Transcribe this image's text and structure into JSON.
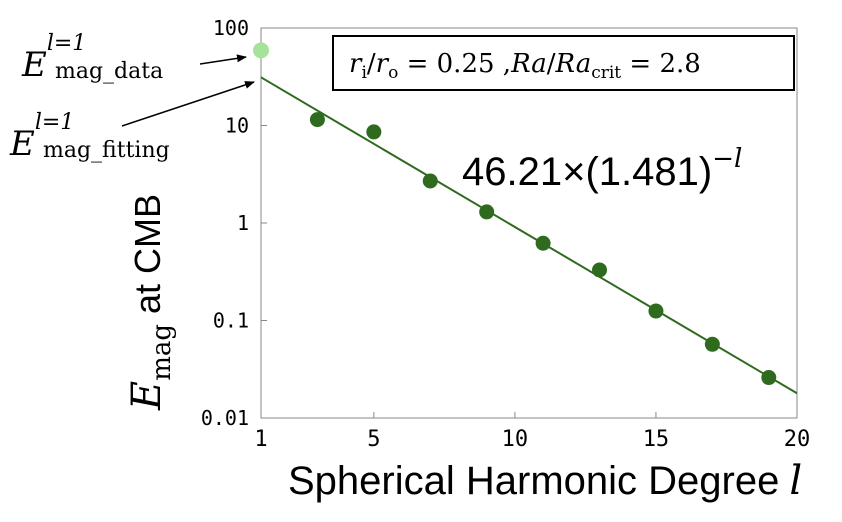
{
  "chart_data": {
    "type": "scatter",
    "xlabel": "Spherical Harmonic Degree",
    "xlabel_var": "l",
    "ylabel_sym": "E",
    "ylabel_sub": "mag",
    "ylabel_rest": "at CMB",
    "xlim": [
      1,
      20
    ],
    "ylim": [
      0.01,
      100
    ],
    "yscale": "log",
    "x_ticks": [
      1,
      5,
      10,
      15,
      20
    ],
    "y_ticks": [
      {
        "value": 100,
        "label": "100"
      },
      {
        "value": 10,
        "label": "10"
      },
      {
        "value": 1,
        "label": "1"
      },
      {
        "value": 0.1,
        "label": "0.1"
      },
      {
        "value": 0.01,
        "label": "0.01"
      }
    ],
    "grid": false,
    "data_point": {
      "x": 1,
      "y": 59,
      "color": "#a6e39a"
    },
    "points": [
      {
        "x": 3,
        "y": 11.5
      },
      {
        "x": 5,
        "y": 8.6
      },
      {
        "x": 7,
        "y": 2.7
      },
      {
        "x": 9,
        "y": 1.3
      },
      {
        "x": 11,
        "y": 0.62
      },
      {
        "x": 13,
        "y": 0.33
      },
      {
        "x": 15,
        "y": 0.125
      },
      {
        "x": 17,
        "y": 0.057
      },
      {
        "x": 19,
        "y": 0.026
      }
    ],
    "fit": {
      "a": 46.21,
      "b": 1.481,
      "label_main": "46.21×(1.481)",
      "label_exp": "−l"
    },
    "colors": {
      "points": "#2e6b1f",
      "fit_line": "#2e6b1f",
      "data_point": "#a6e39a"
    },
    "box": {
      "r_i": "r",
      "sub_i": "i",
      "slash": "/",
      "r_o": "r",
      "sub_o": "o",
      "eq1": " = 0.25 ,",
      "ra": "Ra",
      "slash2": "/",
      "ra2": "Ra",
      "sub_crit": "crit",
      "eq2": " = 2.8"
    },
    "annotations": {
      "data_sym": "E",
      "data_sup": "l=1",
      "data_sub": "mag_data",
      "fit_sym": "E",
      "fit_sup": "l=1",
      "fit_sub": "mag_fitting"
    }
  }
}
